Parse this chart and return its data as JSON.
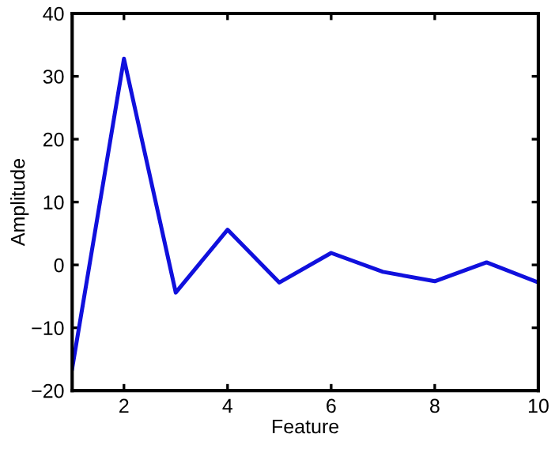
{
  "chart_data": {
    "type": "line",
    "xlabel": "Feature",
    "ylabel": "Amplitude",
    "x": [
      1,
      2,
      3,
      4,
      5,
      6,
      7,
      8,
      9,
      10
    ],
    "series": [
      {
        "color": "#1010dd",
        "values": [
          -16.5,
          32.8,
          -4.4,
          5.6,
          -2.8,
          1.9,
          -1.1,
          -2.6,
          0.4,
          -2.8
        ]
      }
    ],
    "xlim": [
      1,
      10
    ],
    "xticks": [
      2,
      4,
      6,
      8,
      10
    ],
    "ylim": [
      -20,
      40
    ],
    "yticks": [
      -20,
      -10,
      0,
      10,
      20,
      30,
      40
    ],
    "grid": false,
    "legend": false,
    "marker": "none",
    "line_style": "solid"
  }
}
